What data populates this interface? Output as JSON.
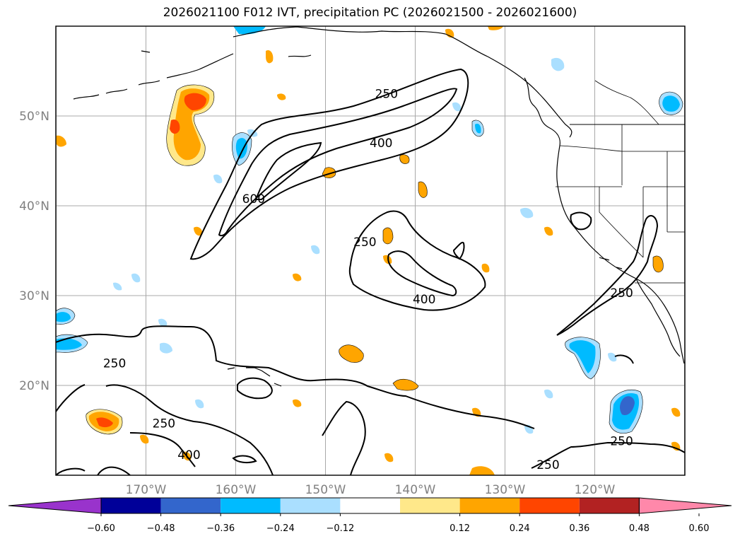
{
  "title": "2026021100 F012 IVT, precipitation PC (2026021500 - 2026021600)",
  "map": {
    "lon_ticks": [
      {
        "value": -170,
        "label": "170°W"
      },
      {
        "value": -160,
        "label": "160°W"
      },
      {
        "value": -150,
        "label": "150°W"
      },
      {
        "value": -140,
        "label": "140°W"
      },
      {
        "value": -130,
        "label": "130°W"
      },
      {
        "value": -120,
        "label": "120°W"
      }
    ],
    "lat_ticks": [
      {
        "value": 50,
        "label": "50°N"
      },
      {
        "value": 40,
        "label": "40°N"
      },
      {
        "value": 30,
        "label": "30°N"
      },
      {
        "value": 20,
        "label": "20°N"
      }
    ],
    "contour_labels": [
      {
        "text": "250",
        "lon": -143.2,
        "lat": 52.5
      },
      {
        "text": "400",
        "lon": -143.8,
        "lat": 47.0
      },
      {
        "text": "600",
        "lon": -158.0,
        "lat": 40.8
      },
      {
        "text": "250",
        "lon": -145.6,
        "lat": 36.0
      },
      {
        "text": "400",
        "lon": -139.0,
        "lat": 29.6
      },
      {
        "text": "250",
        "lon": -173.5,
        "lat": 22.5
      },
      {
        "text": "250",
        "lon": -168.0,
        "lat": 15.8
      },
      {
        "text": "400",
        "lon": -165.2,
        "lat": 12.3
      },
      {
        "text": "250",
        "lon": -117.0,
        "lat": 30.3
      },
      {
        "text": "250",
        "lon": -117.0,
        "lat": 13.8
      },
      {
        "text": "250",
        "lon": -125.2,
        "lat": 11.2
      }
    ]
  },
  "colorbar": {
    "colors": [
      "#9933cc",
      "#000099",
      "#3366cc",
      "#00bbff",
      "#aadfff",
      "#ffffff",
      "#ffe88a",
      "#ffa500",
      "#ff4500",
      "#b22222",
      "#ff88aa"
    ],
    "tick_labels": [
      "−0.60",
      "−0.48",
      "−0.36",
      "−0.24",
      "−0.12",
      "0.12",
      "0.24",
      "0.36",
      "0.48",
      "0.60"
    ]
  }
}
